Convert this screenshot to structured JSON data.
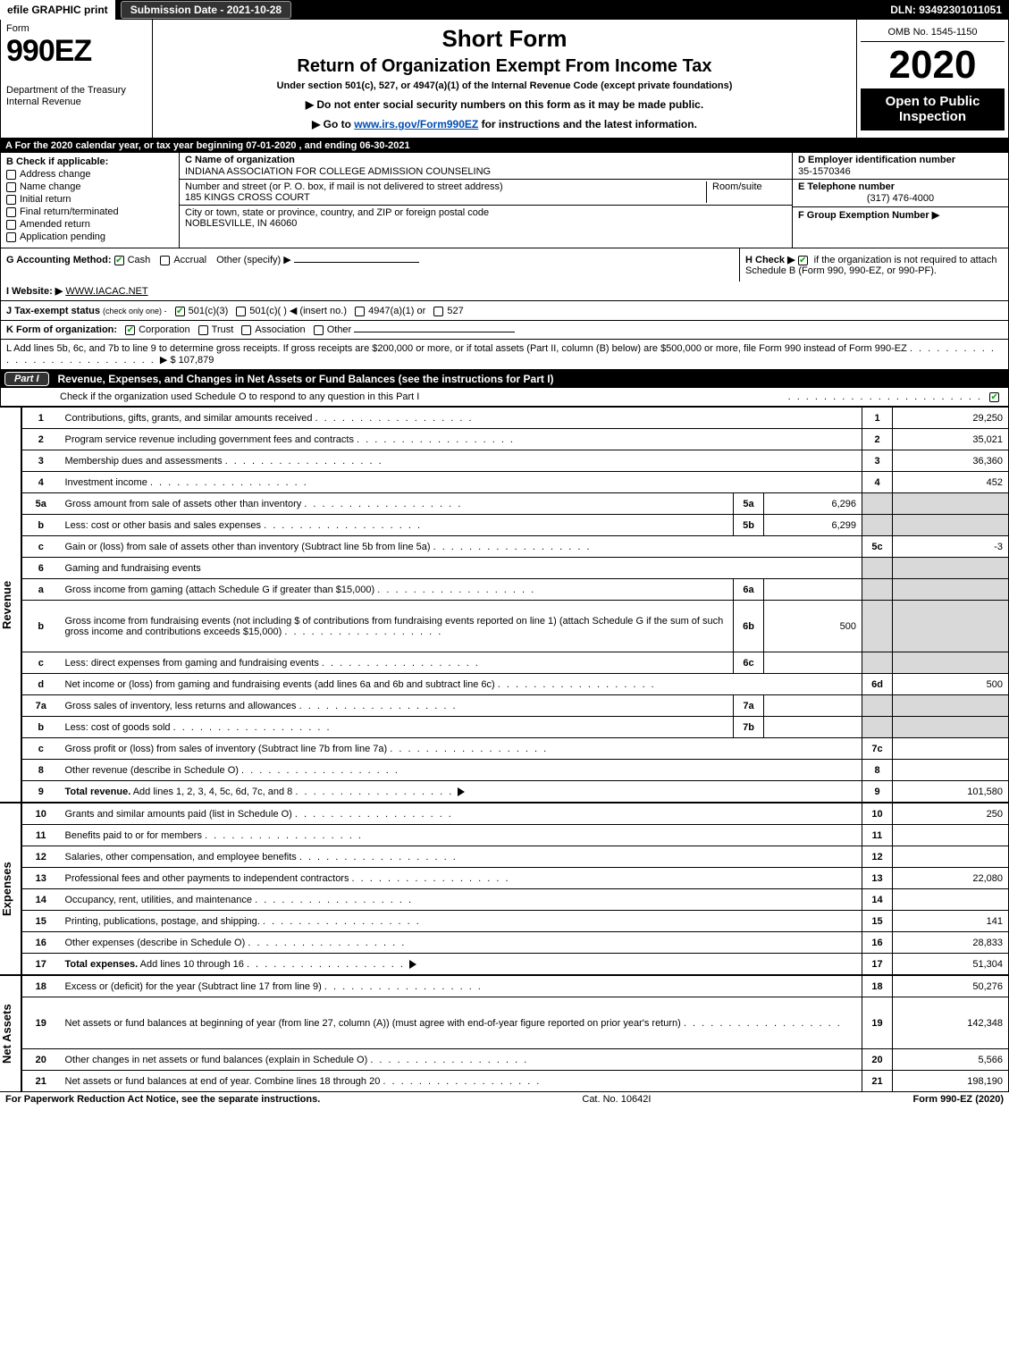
{
  "topbar": {
    "efile": "efile GRAPHIC print",
    "submission": "Submission Date - 2021-10-28",
    "dln": "DLN: 93492301011051"
  },
  "header": {
    "form_label": "Form",
    "form_no": "990EZ",
    "dept": "Department of the Treasury\nInternal Revenue",
    "short_form": "Short Form",
    "title": "Return of Organization Exempt From Income Tax",
    "subtitle": "Under section 501(c), 527, or 4947(a)(1) of the Internal Revenue Code (except private foundations)",
    "warn": "▶ Do not enter social security numbers on this form as it may be made public.",
    "goto": "▶ Go to ",
    "goto_link": "www.irs.gov/Form990EZ",
    "goto_after": " for instructions and the latest information.",
    "omb": "OMB No. 1545-1150",
    "year": "2020",
    "open": "Open to Public Inspection"
  },
  "lineA": "A For the 2020 calendar year, or tax year beginning 07-01-2020 , and ending 06-30-2021",
  "boxB": {
    "title": "B  Check if applicable:",
    "items": [
      "Address change",
      "Name change",
      "Initial return",
      "Final return/terminated",
      "Amended return",
      "Application pending"
    ]
  },
  "boxC": {
    "name_label": "C Name of organization",
    "name": "INDIANA ASSOCIATION FOR COLLEGE ADMISSION COUNSELING",
    "street_label": "Number and street (or P. O. box, if mail is not delivered to street address)",
    "room_label": "Room/suite",
    "street": "185 KINGS CROSS COURT",
    "city_label": "City or town, state or province, country, and ZIP or foreign postal code",
    "city": "NOBLESVILLE, IN  46060"
  },
  "boxDEF": {
    "D_label": "D Employer identification number",
    "D": "35-1570346",
    "E_label": "E Telephone number",
    "E": "(317) 476-4000",
    "F_label": "F Group Exemption Number  ▶"
  },
  "lineG": {
    "label": "G Accounting Method:",
    "cash": "Cash",
    "accrual": "Accrual",
    "other": "Other (specify) ▶"
  },
  "lineH": {
    "label": "H  Check ▶ ",
    "text": " if the organization is not required to attach Schedule B (Form 990, 990-EZ, or 990-PF)."
  },
  "lineI": {
    "label": "I Website: ▶",
    "value": "WWW.IACAC.NET"
  },
  "lineJ": {
    "label": "J Tax-exempt status",
    "note": "(check only one) -",
    "opts": [
      "501(c)(3)",
      "501(c)(  ) ◀ (insert no.)",
      "4947(a)(1) or",
      "527"
    ]
  },
  "lineK": {
    "label": "K Form of organization:",
    "opts": [
      "Corporation",
      "Trust",
      "Association",
      "Other"
    ]
  },
  "lineL": {
    "text": "L Add lines 5b, 6c, and 7b to line 9 to determine gross receipts. If gross receipts are $200,000 or more, or if total assets (Part II, column (B) below) are $500,000 or more, file Form 990 instead of Form 990-EZ",
    "amount": "▶ $ 107,879"
  },
  "part1": {
    "pill": "Part I",
    "title": "Revenue, Expenses, and Changes in Net Assets or Fund Balances (see the instructions for Part I)",
    "check": "Check if the organization used Schedule O to respond to any question in this Part I"
  },
  "sections": {
    "revenue": "Revenue",
    "expenses": "Expenses",
    "netassets": "Net Assets"
  },
  "rows": [
    {
      "n": "1",
      "d": "Contributions, gifts, grants, and similar amounts received",
      "r": "1",
      "v": "29,250"
    },
    {
      "n": "2",
      "d": "Program service revenue including government fees and contracts",
      "r": "2",
      "v": "35,021"
    },
    {
      "n": "3",
      "d": "Membership dues and assessments",
      "r": "3",
      "v": "36,360"
    },
    {
      "n": "4",
      "d": "Investment income",
      "r": "4",
      "v": "452"
    },
    {
      "n": "5a",
      "d": "Gross amount from sale of assets other than inventory",
      "sc": "5a",
      "sv": "6,296",
      "shade": true
    },
    {
      "n": "b",
      "d": "Less: cost or other basis and sales expenses",
      "sc": "5b",
      "sv": "6,299",
      "shade": true
    },
    {
      "n": "c",
      "d": "Gain or (loss) from sale of assets other than inventory (Subtract line 5b from line 5a)",
      "r": "5c",
      "v": "-3"
    },
    {
      "n": "6",
      "d": "Gaming and fundraising events",
      "shade": true
    },
    {
      "n": "a",
      "d": "Gross income from gaming (attach Schedule G if greater than $15,000)",
      "sc": "6a",
      "sv": "",
      "shade": true
    },
    {
      "n": "b",
      "d": "Gross income from fundraising events (not including $                 of contributions from fundraising events reported on line 1) (attach Schedule G if the sum of such gross income and contributions exceeds $15,000)",
      "sc": "6b",
      "sv": "500",
      "shade": true,
      "tall": true
    },
    {
      "n": "c",
      "d": "Less: direct expenses from gaming and fundraising events",
      "sc": "6c",
      "sv": "",
      "shade": true
    },
    {
      "n": "d",
      "d": "Net income or (loss) from gaming and fundraising events (add lines 6a and 6b and subtract line 6c)",
      "r": "6d",
      "v": "500"
    },
    {
      "n": "7a",
      "d": "Gross sales of inventory, less returns and allowances",
      "sc": "7a",
      "sv": "",
      "shade": true
    },
    {
      "n": "b",
      "d": "Less: cost of goods sold",
      "sc": "7b",
      "sv": "",
      "shade": true
    },
    {
      "n": "c",
      "d": "Gross profit or (loss) from sales of inventory (Subtract line 7b from line 7a)",
      "r": "7c",
      "v": ""
    },
    {
      "n": "8",
      "d": "Other revenue (describe in Schedule O)",
      "r": "8",
      "v": ""
    },
    {
      "n": "9",
      "d": "Total revenue. Add lines 1, 2, 3, 4, 5c, 6d, 7c, and 8",
      "r": "9",
      "v": "101,580",
      "bold": true,
      "arrow": true
    }
  ],
  "exp_rows": [
    {
      "n": "10",
      "d": "Grants and similar amounts paid (list in Schedule O)",
      "r": "10",
      "v": "250"
    },
    {
      "n": "11",
      "d": "Benefits paid to or for members",
      "r": "11",
      "v": ""
    },
    {
      "n": "12",
      "d": "Salaries, other compensation, and employee benefits",
      "r": "12",
      "v": ""
    },
    {
      "n": "13",
      "d": "Professional fees and other payments to independent contractors",
      "r": "13",
      "v": "22,080"
    },
    {
      "n": "14",
      "d": "Occupancy, rent, utilities, and maintenance",
      "r": "14",
      "v": ""
    },
    {
      "n": "15",
      "d": "Printing, publications, postage, and shipping.",
      "r": "15",
      "v": "141"
    },
    {
      "n": "16",
      "d": "Other expenses (describe in Schedule O)",
      "r": "16",
      "v": "28,833"
    },
    {
      "n": "17",
      "d": "Total expenses. Add lines 10 through 16",
      "r": "17",
      "v": "51,304",
      "bold": true,
      "arrow": true
    }
  ],
  "na_rows": [
    {
      "n": "18",
      "d": "Excess or (deficit) for the year (Subtract line 17 from line 9)",
      "r": "18",
      "v": "50,276"
    },
    {
      "n": "19",
      "d": "Net assets or fund balances at beginning of year (from line 27, column (A)) (must agree with end-of-year figure reported on prior year's return)",
      "r": "19",
      "v": "142,348",
      "tall": true
    },
    {
      "n": "20",
      "d": "Other changes in net assets or fund balances (explain in Schedule O)",
      "r": "20",
      "v": "5,566"
    },
    {
      "n": "21",
      "d": "Net assets or fund balances at end of year. Combine lines 18 through 20",
      "r": "21",
      "v": "198,190"
    }
  ],
  "footer": {
    "left": "For Paperwork Reduction Act Notice, see the separate instructions.",
    "mid": "Cat. No. 10642I",
    "right": "Form 990-EZ (2020)"
  },
  "colors": {
    "shade": "#d9d9d9",
    "link": "#004db3",
    "check": "#0a7a0a"
  }
}
